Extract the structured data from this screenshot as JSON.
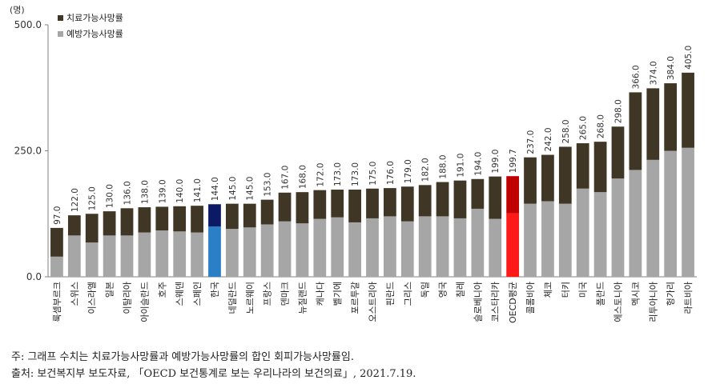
{
  "chart_data": {
    "type": "bar",
    "stacked": true,
    "unit": "(명)",
    "ylim": [
      0,
      500
    ],
    "yticks": [
      "0.0",
      "250.0",
      "500.0"
    ],
    "grid": false,
    "legend_position": "top-left",
    "categories": [
      "룩셈부르크",
      "스위스",
      "이스라엘",
      "일본",
      "이탈리아",
      "아이슬란드",
      "호주",
      "스웨덴",
      "스페인",
      "한국",
      "네덜란드",
      "노르웨이",
      "프랑스",
      "덴마크",
      "뉴질랜드",
      "캐나다",
      "벨기에",
      "포르투갈",
      "오스트리아",
      "핀란드",
      "그리스",
      "독일",
      "영국",
      "칠레",
      "슬로베니아",
      "코스타리카",
      "OECD평균",
      "콜롬비아",
      "체코",
      "터키",
      "미국",
      "폴란드",
      "에스토니아",
      "멕시코",
      "리투아니아",
      "헝가리",
      "라트비아"
    ],
    "totals": [
      97.0,
      122.0,
      125.0,
      130.0,
      136.0,
      138.0,
      139.0,
      140.0,
      141.0,
      144.0,
      145.0,
      145.0,
      153.0,
      167.0,
      168.0,
      172.0,
      173.0,
      173.0,
      175.0,
      176.0,
      179.0,
      182.0,
      188.0,
      191.0,
      194.0,
      199.0,
      199.7,
      237.0,
      242.0,
      258.0,
      265.0,
      268.0,
      298.0,
      366.0,
      374.0,
      384.0,
      405.0
    ],
    "total_labels": [
      "97.0",
      "122.0",
      "125.0",
      "130.0",
      "136.0",
      "138.0",
      "139.0",
      "140.0",
      "141.0",
      "144.0",
      "145.0",
      "145.0",
      "153.0",
      "167.0",
      "168.0",
      "172.0",
      "173.0",
      "173.0",
      "175.0",
      "176.0",
      "179.0",
      "182.0",
      "188.0",
      "191.0",
      "194.0",
      "199.0",
      "199.7",
      "237.0",
      "242.0",
      "258.0",
      "265.0",
      "268.0",
      "298.0",
      "366.0",
      "374.0",
      "384.0",
      "405.0"
    ],
    "series": [
      {
        "name": "예방가능사망률",
        "values": [
          40,
          82,
          68,
          82,
          82,
          88,
          92,
          90,
          88,
          100,
          95,
          98,
          104,
          110,
          106,
          115,
          118,
          108,
          116,
          120,
          110,
          120,
          120,
          116,
          135,
          115,
          126,
          145,
          150,
          145,
          175,
          168,
          195,
          212,
          232,
          250,
          256
        ]
      },
      {
        "name": "치료가능사망률",
        "values": [
          57,
          40,
          57,
          48,
          54,
          50,
          47,
          50,
          53,
          44,
          50,
          47,
          49,
          57,
          62,
          57,
          55,
          65,
          59,
          56,
          69,
          62,
          68,
          75,
          59,
          84,
          73.7,
          92,
          92,
          113,
          90,
          100,
          103,
          154,
          142,
          134,
          149
        ]
      }
    ],
    "highlight": {
      "한국": true,
      "OECD평균": true
    },
    "colors": {
      "treatable": "#403625",
      "preventable": "#a6a6a6",
      "korea_treatable": "#0c1a66",
      "korea_preventable": "#2a7fc6",
      "oecd_treatable": "#c00000",
      "oecd_preventable": "#ff1a1a"
    }
  },
  "footnotes": {
    "note1": "주: 그래프 수치는 치료가능사망률과 예방가능사망률의 합인 회피가능사망률임.",
    "note2": "출처: 보건복지부 보도자료, 「OECD 보건통계로 보는 우리나라의 보건의료」, 2021.7.19."
  }
}
